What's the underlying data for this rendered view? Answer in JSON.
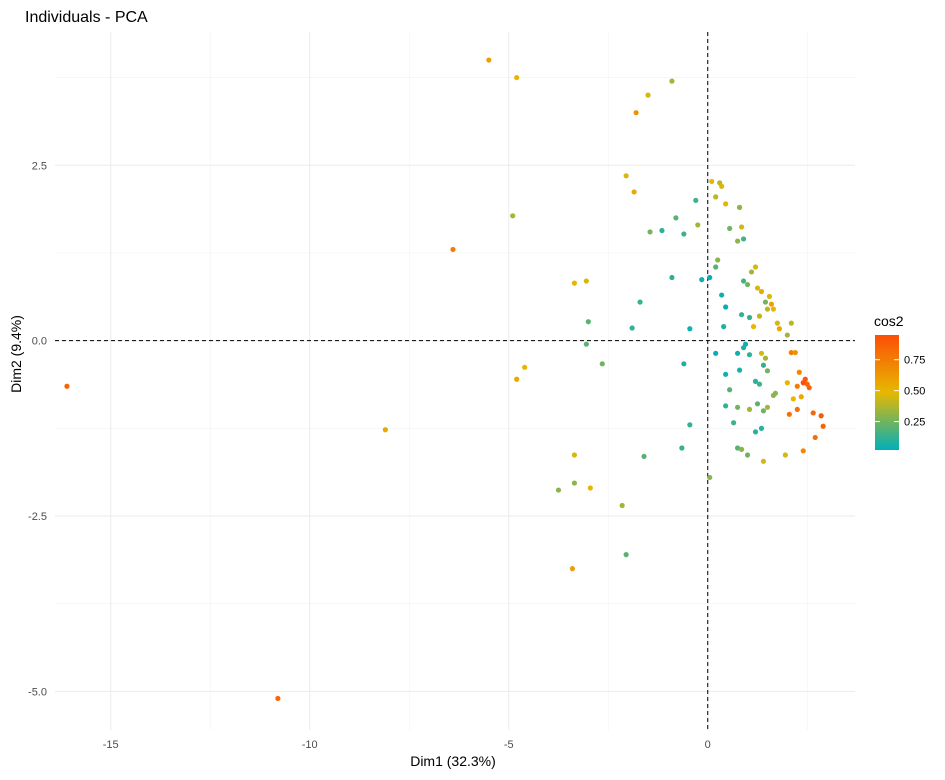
{
  "chart_data": {
    "type": "scatter",
    "title": "Individuals - PCA",
    "xlabel": "Dim1 (32.3%)",
    "ylabel": "Dim2 (9.4%)",
    "xlim": [
      -16.4,
      3.7
    ],
    "ylim": [
      -5.55,
      4.4
    ],
    "x_ticks": [
      -15,
      -10,
      -5,
      0
    ],
    "x_tick_labels": [
      "-15",
      "-10",
      "-5",
      "0"
    ],
    "y_ticks": [
      -5.0,
      -2.5,
      0.0,
      2.5
    ],
    "y_tick_labels": [
      "-5.0",
      "-2.5",
      "0.0",
      "2.5"
    ],
    "grid": true,
    "reference_lines": {
      "x": 0,
      "y": 0,
      "style": "dashed"
    },
    "legend": {
      "title": "cos2",
      "position": "right",
      "gradient_colors": [
        "#00AFBB",
        "#E7B800",
        "#FC4E07"
      ],
      "range": [
        0.02,
        0.95
      ],
      "ticks": [
        0.25,
        0.5,
        0.75
      ],
      "tick_labels": [
        "0.25",
        "0.50",
        "0.75"
      ]
    },
    "points": [
      {
        "x": -16.1,
        "y": -0.65,
        "cos2": 0.85
      },
      {
        "x": -10.8,
        "y": -5.1,
        "cos2": 0.85
      },
      {
        "x": -8.1,
        "y": -1.27,
        "cos2": 0.55
      },
      {
        "x": -6.4,
        "y": 1.3,
        "cos2": 0.75
      },
      {
        "x": -5.5,
        "y": 4.0,
        "cos2": 0.6
      },
      {
        "x": -4.8,
        "y": 3.75,
        "cos2": 0.5
      },
      {
        "x": -4.9,
        "y": 1.78,
        "cos2": 0.35
      },
      {
        "x": -4.8,
        "y": -0.55,
        "cos2": 0.55
      },
      {
        "x": -4.6,
        "y": -0.38,
        "cos2": 0.5
      },
      {
        "x": -3.4,
        "y": -3.25,
        "cos2": 0.6
      },
      {
        "x": -3.75,
        "y": -2.13,
        "cos2": 0.3
      },
      {
        "x": -3.35,
        "y": -1.63,
        "cos2": 0.45
      },
      {
        "x": -3.35,
        "y": -2.03,
        "cos2": 0.3
      },
      {
        "x": -2.95,
        "y": -2.1,
        "cos2": 0.5
      },
      {
        "x": -3.35,
        "y": 0.82,
        "cos2": 0.5
      },
      {
        "x": -3.05,
        "y": 0.85,
        "cos2": 0.45
      },
      {
        "x": -3.0,
        "y": 0.27,
        "cos2": 0.2
      },
      {
        "x": -3.05,
        "y": -0.05,
        "cos2": 0.2
      },
      {
        "x": -2.65,
        "y": -0.33,
        "cos2": 0.25
      },
      {
        "x": -2.15,
        "y": -2.35,
        "cos2": 0.35
      },
      {
        "x": -2.05,
        "y": -3.05,
        "cos2": 0.2
      },
      {
        "x": -2.05,
        "y": 2.35,
        "cos2": 0.45
      },
      {
        "x": -1.85,
        "y": 2.12,
        "cos2": 0.55
      },
      {
        "x": -1.8,
        "y": 3.25,
        "cos2": 0.65
      },
      {
        "x": -1.5,
        "y": 3.5,
        "cos2": 0.45
      },
      {
        "x": -0.9,
        "y": 3.7,
        "cos2": 0.35
      },
      {
        "x": -1.9,
        "y": 0.18,
        "cos2": 0.12
      },
      {
        "x": -1.7,
        "y": 0.55,
        "cos2": 0.12
      },
      {
        "x": -1.45,
        "y": 1.55,
        "cos2": 0.25
      },
      {
        "x": -1.15,
        "y": 1.57,
        "cos2": 0.1
      },
      {
        "x": -1.6,
        "y": -1.65,
        "cos2": 0.2
      },
      {
        "x": -0.8,
        "y": 1.75,
        "cos2": 0.2
      },
      {
        "x": -0.6,
        "y": 1.52,
        "cos2": 0.15
      },
      {
        "x": -0.3,
        "y": 2.0,
        "cos2": 0.15
      },
      {
        "x": -0.25,
        "y": 1.65,
        "cos2": 0.35
      },
      {
        "x": -0.65,
        "y": -1.53,
        "cos2": 0.12
      },
      {
        "x": -0.45,
        "y": -1.2,
        "cos2": 0.12
      },
      {
        "x": -0.6,
        "y": -0.33,
        "cos2": 0.08
      },
      {
        "x": -0.45,
        "y": 0.17,
        "cos2": 0.05
      },
      {
        "x": -0.9,
        "y": 0.9,
        "cos2": 0.1
      },
      {
        "x": -0.15,
        "y": 0.87,
        "cos2": 0.05
      },
      {
        "x": 0.05,
        "y": -1.95,
        "cos2": 0.3
      },
      {
        "x": 0.1,
        "y": 2.27,
        "cos2": 0.5
      },
      {
        "x": 0.2,
        "y": 2.05,
        "cos2": 0.4
      },
      {
        "x": 0.3,
        "y": 2.25,
        "cos2": 0.4
      },
      {
        "x": 0.35,
        "y": 2.2,
        "cos2": 0.45
      },
      {
        "x": 0.45,
        "y": 1.95,
        "cos2": 0.5
      },
      {
        "x": 0.55,
        "y": 1.6,
        "cos2": 0.25
      },
      {
        "x": 0.8,
        "y": 1.9,
        "cos2": 0.3
      },
      {
        "x": 0.85,
        "y": 1.62,
        "cos2": 0.45
      },
      {
        "x": 0.75,
        "y": 1.42,
        "cos2": 0.3
      },
      {
        "x": 0.9,
        "y": 1.45,
        "cos2": 0.15
      },
      {
        "x": 0.25,
        "y": 1.15,
        "cos2": 0.3
      },
      {
        "x": 0.2,
        "y": 1.05,
        "cos2": 0.2
      },
      {
        "x": 0.05,
        "y": 0.9,
        "cos2": 0.03
      },
      {
        "x": 0.35,
        "y": 0.65,
        "cos2": 0.05
      },
      {
        "x": 0.45,
        "y": 0.48,
        "cos2": 0.03
      },
      {
        "x": 0.4,
        "y": 0.2,
        "cos2": 0.08
      },
      {
        "x": 0.2,
        "y": -0.18,
        "cos2": 0.03
      },
      {
        "x": 0.45,
        "y": -0.48,
        "cos2": 0.05
      },
      {
        "x": 0.75,
        "y": -0.18,
        "cos2": 0.05
      },
      {
        "x": 0.85,
        "y": 0.37,
        "cos2": 0.12
      },
      {
        "x": 0.9,
        "y": 0.85,
        "cos2": 0.15
      },
      {
        "x": 1.0,
        "y": 0.8,
        "cos2": 0.25
      },
      {
        "x": 1.1,
        "y": 0.98,
        "cos2": 0.35
      },
      {
        "x": 1.2,
        "y": 1.05,
        "cos2": 0.45
      },
      {
        "x": 1.25,
        "y": 0.75,
        "cos2": 0.45
      },
      {
        "x": 1.35,
        "y": 0.7,
        "cos2": 0.55
      },
      {
        "x": 1.45,
        "y": 0.55,
        "cos2": 0.25
      },
      {
        "x": 1.55,
        "y": 0.63,
        "cos2": 0.45
      },
      {
        "x": 1.6,
        "y": 0.52,
        "cos2": 0.6
      },
      {
        "x": 1.65,
        "y": 0.45,
        "cos2": 0.5
      },
      {
        "x": 1.5,
        "y": 0.45,
        "cos2": 0.4
      },
      {
        "x": 1.3,
        "y": 0.35,
        "cos2": 0.4
      },
      {
        "x": 1.15,
        "y": 0.2,
        "cos2": 0.5
      },
      {
        "x": 1.05,
        "y": 0.33,
        "cos2": 0.12
      },
      {
        "x": 0.95,
        "y": -0.05,
        "cos2": 0.05
      },
      {
        "x": 0.9,
        "y": -0.1,
        "cos2": 0.08
      },
      {
        "x": 1.05,
        "y": -0.2,
        "cos2": 0.12
      },
      {
        "x": 0.8,
        "y": -0.42,
        "cos2": 0.08
      },
      {
        "x": 1.2,
        "y": -0.58,
        "cos2": 0.1
      },
      {
        "x": 1.3,
        "y": -0.62,
        "cos2": 0.15
      },
      {
        "x": 1.4,
        "y": -0.35,
        "cos2": 0.12
      },
      {
        "x": 1.5,
        "y": -0.43,
        "cos2": 0.25
      },
      {
        "x": 1.45,
        "y": -0.25,
        "cos2": 0.35
      },
      {
        "x": 1.35,
        "y": -0.18,
        "cos2": 0.45
      },
      {
        "x": 1.75,
        "y": 0.25,
        "cos2": 0.45
      },
      {
        "x": 1.8,
        "y": 0.17,
        "cos2": 0.55
      },
      {
        "x": 2.1,
        "y": 0.25,
        "cos2": 0.4
      },
      {
        "x": 2.0,
        "y": 0.08,
        "cos2": 0.35
      },
      {
        "x": 2.1,
        "y": -0.17,
        "cos2": 0.75
      },
      {
        "x": 2.2,
        "y": -0.17,
        "cos2": 0.65
      },
      {
        "x": 2.3,
        "y": -0.45,
        "cos2": 0.7
      },
      {
        "x": 2.25,
        "y": -0.65,
        "cos2": 0.75
      },
      {
        "x": 2.4,
        "y": -0.6,
        "cos2": 0.95
      },
      {
        "x": 2.45,
        "y": -0.55,
        "cos2": 0.9
      },
      {
        "x": 2.5,
        "y": -0.62,
        "cos2": 0.85
      },
      {
        "x": 2.55,
        "y": -0.67,
        "cos2": 0.85
      },
      {
        "x": 2.35,
        "y": -0.8,
        "cos2": 0.55
      },
      {
        "x": 2.15,
        "y": -0.83,
        "cos2": 0.5
      },
      {
        "x": 2.25,
        "y": -0.98,
        "cos2": 0.8
      },
      {
        "x": 2.05,
        "y": -1.05,
        "cos2": 0.8
      },
      {
        "x": 2.65,
        "y": -1.03,
        "cos2": 0.85
      },
      {
        "x": 2.85,
        "y": -1.07,
        "cos2": 0.9
      },
      {
        "x": 2.9,
        "y": -1.22,
        "cos2": 0.85
      },
      {
        "x": 2.7,
        "y": -1.38,
        "cos2": 0.8
      },
      {
        "x": 2.4,
        "y": -1.57,
        "cos2": 0.7
      },
      {
        "x": 1.95,
        "y": -1.63,
        "cos2": 0.45
      },
      {
        "x": 1.7,
        "y": -0.75,
        "cos2": 0.3
      },
      {
        "x": 1.65,
        "y": -0.78,
        "cos2": 0.3
      },
      {
        "x": 1.5,
        "y": -0.95,
        "cos2": 0.35
      },
      {
        "x": 1.4,
        "y": -1.0,
        "cos2": 0.25
      },
      {
        "x": 1.25,
        "y": -0.9,
        "cos2": 0.2
      },
      {
        "x": 1.35,
        "y": -1.25,
        "cos2": 0.1
      },
      {
        "x": 1.2,
        "y": -1.3,
        "cos2": 0.1
      },
      {
        "x": 1.05,
        "y": -0.98,
        "cos2": 0.35
      },
      {
        "x": 0.75,
        "y": -0.95,
        "cos2": 0.25
      },
      {
        "x": 0.45,
        "y": -0.93,
        "cos2": 0.12
      },
      {
        "x": 0.65,
        "y": -1.17,
        "cos2": 0.15
      },
      {
        "x": 0.75,
        "y": -1.53,
        "cos2": 0.2
      },
      {
        "x": 0.85,
        "y": -1.55,
        "cos2": 0.3
      },
      {
        "x": 1.0,
        "y": -1.63,
        "cos2": 0.25
      },
      {
        "x": 1.4,
        "y": -1.72,
        "cos2": 0.45
      },
      {
        "x": 2.0,
        "y": -0.6,
        "cos2": 0.5
      },
      {
        "x": 0.55,
        "y": -0.7,
        "cos2": 0.2
      }
    ]
  }
}
